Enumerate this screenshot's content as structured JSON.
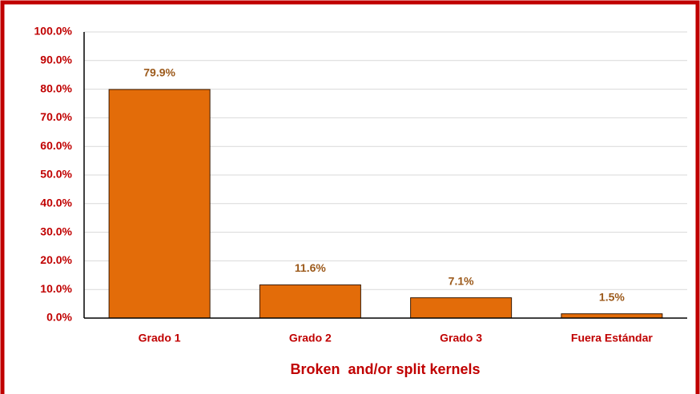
{
  "chart_data": {
    "type": "bar",
    "x_label": "Broken  and/or split kernels",
    "categories": [
      "Grado 1",
      "Grado 2",
      "Grado 3",
      "Fuera Estándar"
    ],
    "values": [
      79.9,
      11.6,
      7.1,
      1.5
    ],
    "value_labels": [
      "79.9%",
      "11.6%",
      "7.1%",
      "1.5%"
    ],
    "color": "#e36c09",
    "ylim": [
      0,
      100
    ],
    "yticks": [
      {
        "value": 0,
        "label": "0.0%"
      },
      {
        "value": 10,
        "label": "10.0%"
      },
      {
        "value": 20,
        "label": "20.0%"
      },
      {
        "value": 30,
        "label": "30.0%"
      },
      {
        "value": 40,
        "label": "40.0%"
      },
      {
        "value": 50,
        "label": "50.0%"
      },
      {
        "value": 60,
        "label": "60.0%"
      },
      {
        "value": 70,
        "label": "70.0%"
      },
      {
        "value": 80,
        "label": "80.0%"
      },
      {
        "value": 90,
        "label": "90.0%"
      },
      {
        "value": 100,
        "label": "100.0%"
      }
    ],
    "grid": true
  }
}
